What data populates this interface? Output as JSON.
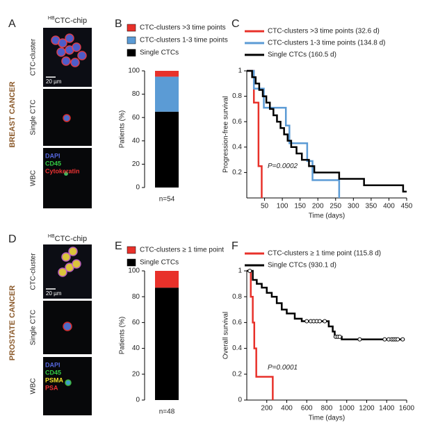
{
  "image_panels": [
    {
      "label": "A",
      "title": {
        "sup": "HB",
        "text": "CTC-chip"
      },
      "side_label": "BREAST CANCER",
      "rows": [
        {
          "label": "CTC-cluster",
          "scale": "20 µm"
        },
        {
          "label": "Single CTC"
        },
        {
          "label": "WBC",
          "stains": [
            {
              "text": "DAPI",
              "color": "#5566dd"
            },
            {
              "text": "CD45",
              "color": "#33cc44"
            },
            {
              "text": "Cytokeratin",
              "color": "#ee3333"
            }
          ]
        }
      ]
    },
    {
      "label": "D",
      "title": {
        "sup": "HB",
        "text": "CTC-chip"
      },
      "side_label": "PROSTATE CANCER",
      "rows": [
        {
          "label": "CTC-cluster",
          "scale": "20 µm"
        },
        {
          "label": "Single CTC"
        },
        {
          "label": "WBC",
          "stains": [
            {
              "text": "DAPI",
              "color": "#5566dd"
            },
            {
              "text": "CD45",
              "color": "#33cc44"
            },
            {
              "text": "PSMA",
              "color": "#f2e22a"
            },
            {
              "text": "PSA",
              "color": "#ee3333"
            }
          ]
        }
      ]
    }
  ],
  "chart_data": [
    {
      "type": "bar",
      "label": "B",
      "stacked": true,
      "categories": [
        "n=54"
      ],
      "ylabel": "Patients (%)",
      "ylim": [
        0,
        100
      ],
      "yticks": [
        0,
        20,
        40,
        60,
        80,
        100
      ],
      "series": [
        {
          "name": "CTC-clusters >3 time points",
          "color": "#e8312a",
          "values": [
            5
          ]
        },
        {
          "name": "CTC-clusters 1-3 time points",
          "color": "#5b9bd5",
          "values": [
            30
          ]
        },
        {
          "name": "Single CTCs",
          "color": "#000000",
          "values": [
            65
          ]
        }
      ]
    },
    {
      "type": "line",
      "label": "C",
      "xlabel": "Time (days)",
      "ylabel": "Progression-free survival",
      "annotation": "P=0.0002",
      "xlim": [
        0,
        450
      ],
      "xticks": [
        50,
        100,
        150,
        200,
        250,
        300,
        350,
        400,
        450
      ],
      "ylim": [
        0,
        1
      ],
      "yticks": [
        0.2,
        0.4,
        0.6,
        0.8,
        1
      ],
      "series": [
        {
          "name": "CTC-clusters >3 time points (32.6 d)",
          "color": "#e8312a",
          "x": [
            0,
            20,
            20,
            33,
            33,
            42,
            42
          ],
          "values": [
            1,
            1,
            0.75,
            0.75,
            0.25,
            0.25,
            0
          ]
        },
        {
          "name": "CTC-clusters 1-3 time points (134.8 d)",
          "color": "#5b9bd5",
          "x": [
            0,
            20,
            20,
            48,
            48,
            110,
            110,
            120,
            120,
            170,
            170,
            185,
            185,
            260,
            260
          ],
          "values": [
            1,
            1,
            0.86,
            0.86,
            0.71,
            0.71,
            0.57,
            0.57,
            0.43,
            0.43,
            0.29,
            0.29,
            0.14,
            0.14,
            0
          ]
        },
        {
          "name": "Single CTCs (160.5 d)",
          "color": "#000000",
          "x": [
            0,
            15,
            15,
            25,
            25,
            35,
            35,
            45,
            45,
            55,
            55,
            65,
            65,
            75,
            75,
            85,
            85,
            95,
            95,
            105,
            105,
            115,
            115,
            125,
            125,
            140,
            140,
            155,
            155,
            175,
            175,
            190,
            190,
            260,
            260,
            330,
            330,
            440,
            440,
            450
          ],
          "values": [
            1,
            1,
            0.95,
            0.95,
            0.9,
            0.9,
            0.85,
            0.85,
            0.8,
            0.8,
            0.75,
            0.75,
            0.7,
            0.7,
            0.65,
            0.65,
            0.6,
            0.6,
            0.55,
            0.55,
            0.5,
            0.5,
            0.45,
            0.45,
            0.4,
            0.4,
            0.35,
            0.35,
            0.3,
            0.3,
            0.25,
            0.25,
            0.2,
            0.2,
            0.15,
            0.15,
            0.1,
            0.1,
            0.05,
            0.05
          ]
        }
      ]
    },
    {
      "type": "bar",
      "label": "E",
      "stacked": true,
      "categories": [
        "n=48"
      ],
      "ylabel": "Patients (%)",
      "ylim": [
        0,
        100
      ],
      "yticks": [
        0,
        20,
        40,
        60,
        80,
        100
      ],
      "series": [
        {
          "name": "CTC-clusters ≥ 1 time point",
          "color": "#e8312a",
          "values": [
            13
          ]
        },
        {
          "name": "Single CTCs",
          "color": "#000000",
          "values": [
            87
          ]
        }
      ]
    },
    {
      "type": "line",
      "label": "F",
      "xlabel": "Time (days)",
      "ylabel": "Overall survival",
      "annotation": "P=0.0001",
      "xlim": [
        0,
        1600
      ],
      "xticks": [
        200,
        400,
        600,
        800,
        1000,
        1200,
        1400,
        1600
      ],
      "ylim": [
        0,
        1
      ],
      "yticks": [
        0,
        0.2,
        0.4,
        0.6,
        0.8,
        1
      ],
      "series": [
        {
          "name": "CTC-clusters ≥ 1 time point (115.8 d)",
          "color": "#e8312a",
          "x": [
            0,
            40,
            40,
            60,
            60,
            75,
            75,
            95,
            95,
            125,
            125,
            260,
            260
          ],
          "values": [
            1,
            1,
            0.8,
            0.8,
            0.6,
            0.6,
            0.4,
            0.4,
            0.18,
            0.18,
            0.18,
            0.18,
            0
          ]
        },
        {
          "name": "Single CTCs (930.1 d)",
          "color": "#000000",
          "x": [
            0,
            60,
            60,
            100,
            100,
            150,
            150,
            200,
            200,
            250,
            250,
            300,
            300,
            350,
            350,
            400,
            400,
            480,
            480,
            550,
            550,
            820,
            820,
            860,
            860,
            880,
            880,
            950,
            950,
            1580
          ],
          "values": [
            1,
            1,
            0.93,
            0.93,
            0.9,
            0.9,
            0.87,
            0.87,
            0.83,
            0.83,
            0.8,
            0.8,
            0.75,
            0.75,
            0.7,
            0.7,
            0.67,
            0.67,
            0.63,
            0.63,
            0.61,
            0.61,
            0.57,
            0.57,
            0.53,
            0.53,
            0.49,
            0.49,
            0.47,
            0.47
          ],
          "censored_x": [
            30,
            600,
            640,
            670,
            700,
            730,
            780,
            890,
            910,
            930,
            1130,
            1380,
            1420,
            1450,
            1470,
            1490,
            1510,
            1560
          ],
          "censored_y": [
            1,
            0.61,
            0.61,
            0.61,
            0.61,
            0.61,
            0.61,
            0.49,
            0.49,
            0.49,
            0.47,
            0.47,
            0.47,
            0.47,
            0.47,
            0.47,
            0.47,
            0.47
          ]
        }
      ]
    }
  ]
}
